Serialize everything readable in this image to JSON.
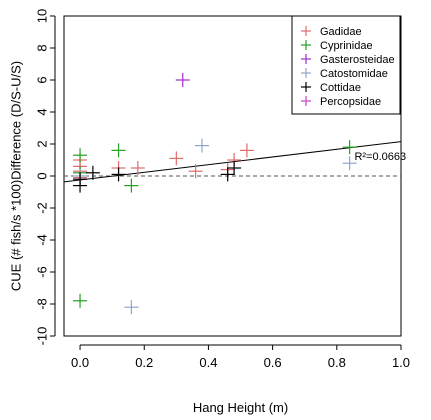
{
  "chart_data": {
    "type": "scatter",
    "xlabel": "Hang Height (m)",
    "ylabel": "CUE (# fish/s *100)Difference (D/S-U/S)",
    "xlim": [
      -0.05,
      1.0
    ],
    "ylim": [
      -10,
      10
    ],
    "x_ticks": [
      "0.0",
      "0.2",
      "0.4",
      "0.6",
      "0.8",
      "1.0"
    ],
    "x_tick_values": [
      0.0,
      0.2,
      0.4,
      0.6,
      0.8,
      1.0
    ],
    "y_ticks": [
      "-10",
      "-8",
      "-6",
      "-4",
      "-2",
      "0",
      "2",
      "4",
      "6",
      "8",
      "10"
    ],
    "y_tick_values": [
      -10,
      -8,
      -6,
      -4,
      -2,
      0,
      2,
      4,
      6,
      8,
      10
    ],
    "grid": false,
    "legend_position": "top-right",
    "series": [
      {
        "name": "Gadidae",
        "color": "#e26b6b",
        "points": [
          {
            "x": 0.0,
            "y": 1.0
          },
          {
            "x": 0.0,
            "y": 0.6
          },
          {
            "x": 0.0,
            "y": 0.3
          },
          {
            "x": 0.0,
            "y": -0.1
          },
          {
            "x": 0.12,
            "y": 0.5
          },
          {
            "x": 0.18,
            "y": 0.5
          },
          {
            "x": 0.3,
            "y": 1.1
          },
          {
            "x": 0.36,
            "y": 0.3
          },
          {
            "x": 0.46,
            "y": 0.4
          },
          {
            "x": 0.48,
            "y": 1.0
          },
          {
            "x": 0.52,
            "y": 1.6
          }
        ]
      },
      {
        "name": "Cyprinidae",
        "color": "#22a022",
        "points": [
          {
            "x": 0.0,
            "y": 1.3
          },
          {
            "x": 0.0,
            "y": 0.2
          },
          {
            "x": 0.0,
            "y": -7.8
          },
          {
            "x": 0.12,
            "y": 1.6
          },
          {
            "x": 0.16,
            "y": -0.6
          },
          {
            "x": 0.84,
            "y": 1.8
          }
        ]
      },
      {
        "name": "Gasterosteidae",
        "color": "#9b30c8",
        "points": [
          {
            "x": 0.32,
            "y": 6.0
          }
        ]
      },
      {
        "name": "Catostomidae",
        "color": "#8fa6c9",
        "points": [
          {
            "x": 0.0,
            "y": 0.0
          },
          {
            "x": 0.16,
            "y": -8.2
          },
          {
            "x": 0.38,
            "y": 1.9
          },
          {
            "x": 0.84,
            "y": 0.8
          }
        ]
      },
      {
        "name": "Cottidae",
        "color": "#000000",
        "points": [
          {
            "x": 0.0,
            "y": -0.6
          },
          {
            "x": 0.0,
            "y": -0.2
          },
          {
            "x": 0.04,
            "y": 0.2
          },
          {
            "x": 0.12,
            "y": 0.1
          },
          {
            "x": 0.46,
            "y": 0.1
          },
          {
            "x": 0.48,
            "y": 0.5
          }
        ]
      },
      {
        "name": "Percopsidae",
        "color": "#c840c8",
        "points": []
      }
    ],
    "regression": {
      "intercept": -0.25,
      "slope": 2.4
    },
    "reference_line_y": 0,
    "annotation": "R²=0.0663"
  }
}
